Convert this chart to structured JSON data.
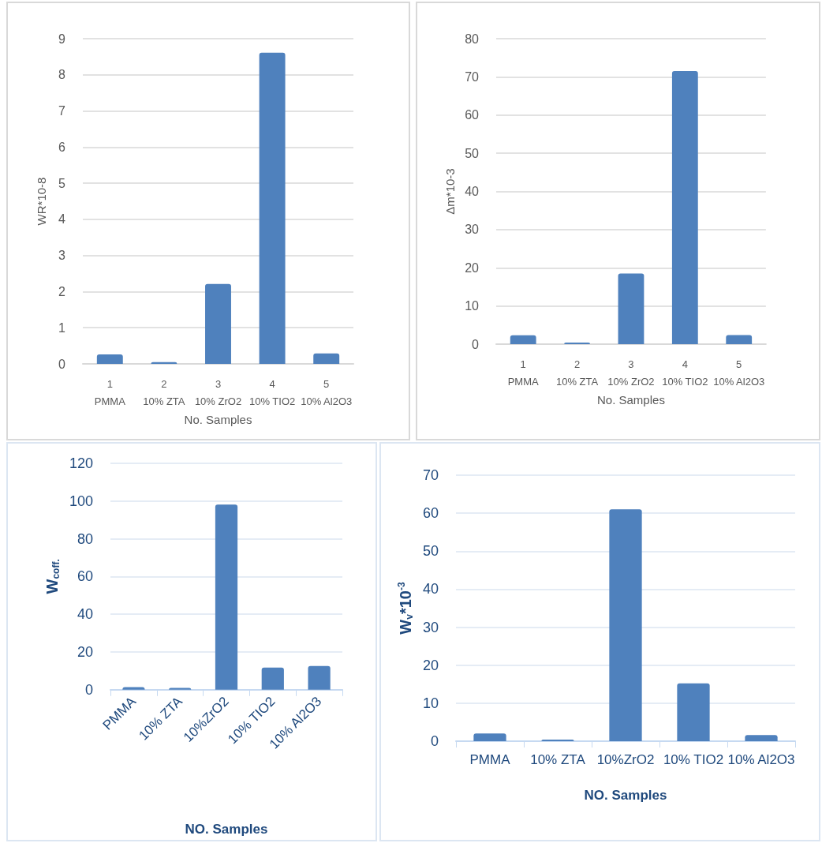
{
  "chart_data": [
    {
      "type": "bar",
      "ylabel": "WR*10-8",
      "xlabel": "No. Samples",
      "categories": [
        "1\nPMMA",
        "2\n10% ZTA",
        "3\n10% ZrO2",
        "4\n10% TIO2",
        "5\n10% Al2O3"
      ],
      "values": [
        0.26,
        0.05,
        2.21,
        8.61,
        0.29
      ],
      "color": "#4f81bd",
      "ylim": [
        0,
        9
      ],
      "yticks": [
        0,
        1,
        2,
        3,
        4,
        5,
        6,
        7,
        8,
        9
      ],
      "grid": "y"
    },
    {
      "type": "bar",
      "ylabel": "Δm*10-3",
      "xlabel": "No. Samples",
      "categories": [
        "1\nPMMA",
        "2\n10% ZTA",
        "3\n10% ZrO2",
        "4\n10% TIO2",
        "5\n10% Al2O3"
      ],
      "values": [
        2.3,
        0.4,
        18.5,
        71.5,
        2.4
      ],
      "color": "#4f81bd",
      "ylim": [
        0,
        80
      ],
      "yticks": [
        0,
        10,
        20,
        30,
        40,
        50,
        60,
        70,
        80
      ],
      "grid": "y"
    },
    {
      "type": "bar",
      "ylabel": "W$_{coff.}$",
      "xlabel": "NO. Samples",
      "categories": [
        "PMMA",
        "10% ZTA",
        "10%ZrO2",
        "10% TIO2",
        "10% Al2O3"
      ],
      "values": [
        1.4,
        1.0,
        98.1,
        11.7,
        12.6
      ],
      "color": "#4f81bd",
      "ylim": [
        0,
        120
      ],
      "yticks": [
        0,
        20,
        40,
        60,
        80,
        100,
        120
      ],
      "grid": "y"
    },
    {
      "type": "bar",
      "ylabel": "W$_{v}$*10$^{-3}$",
      "xlabel": "NO. Samples",
      "categories": [
        "PMMA",
        "10% ZTA",
        "10%ZrO2",
        "10% TIO2",
        "10% Al2O3"
      ],
      "values": [
        2.0,
        0.4,
        61.0,
        15.2,
        1.6
      ],
      "color": "#4f81bd",
      "ylim": [
        0,
        70
      ],
      "yticks": [
        0,
        10,
        20,
        30,
        40,
        50,
        60,
        70
      ],
      "grid": "y"
    }
  ]
}
